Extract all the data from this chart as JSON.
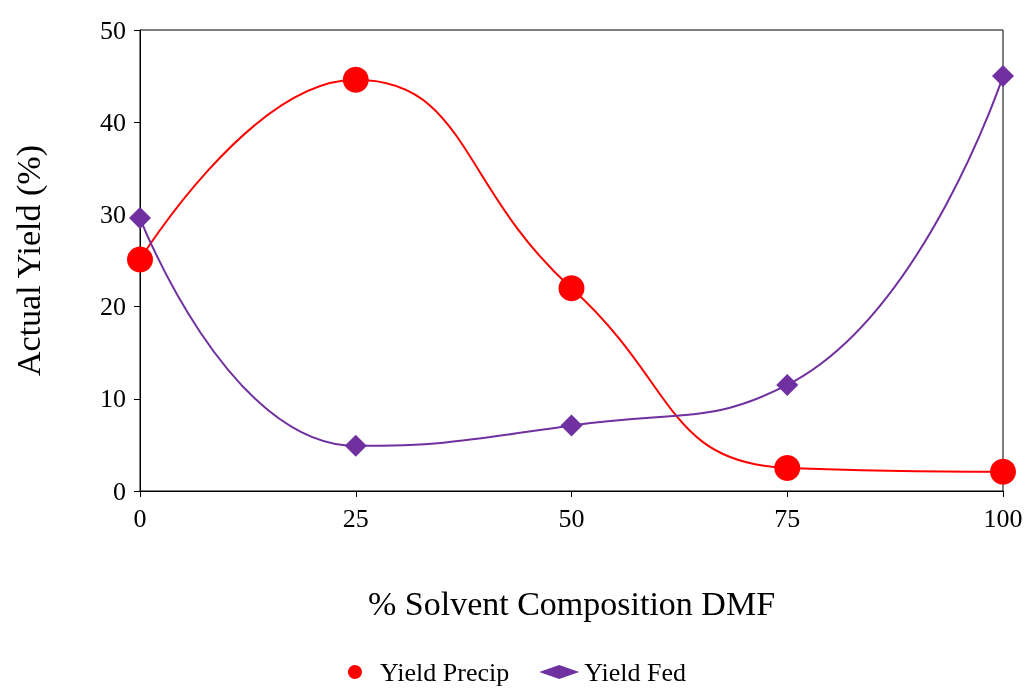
{
  "chart_data": {
    "type": "line",
    "xlabel": "% Solvent Composition DMF",
    "ylabel": "Actual Yield (%)",
    "x": [
      0,
      25,
      50,
      75,
      100
    ],
    "xlim": [
      0,
      100
    ],
    "xticks": [
      0,
      25,
      50,
      75,
      100
    ],
    "ylim": [
      0,
      50
    ],
    "yticks": [
      0,
      10,
      20,
      30,
      40,
      50
    ],
    "grid": false,
    "legend": "bottom",
    "line_style": "solid",
    "series": [
      {
        "name": "Yield Precip",
        "color": "#ff0000",
        "marker": "circle",
        "values": [
          25.1,
          44.6,
          22.0,
          2.5,
          2.1
        ]
      },
      {
        "name": "Yield Fed",
        "color": "#7030a0",
        "marker": "diamond",
        "values": [
          29.6,
          4.9,
          7.1,
          11.5,
          45.0
        ]
      }
    ]
  }
}
